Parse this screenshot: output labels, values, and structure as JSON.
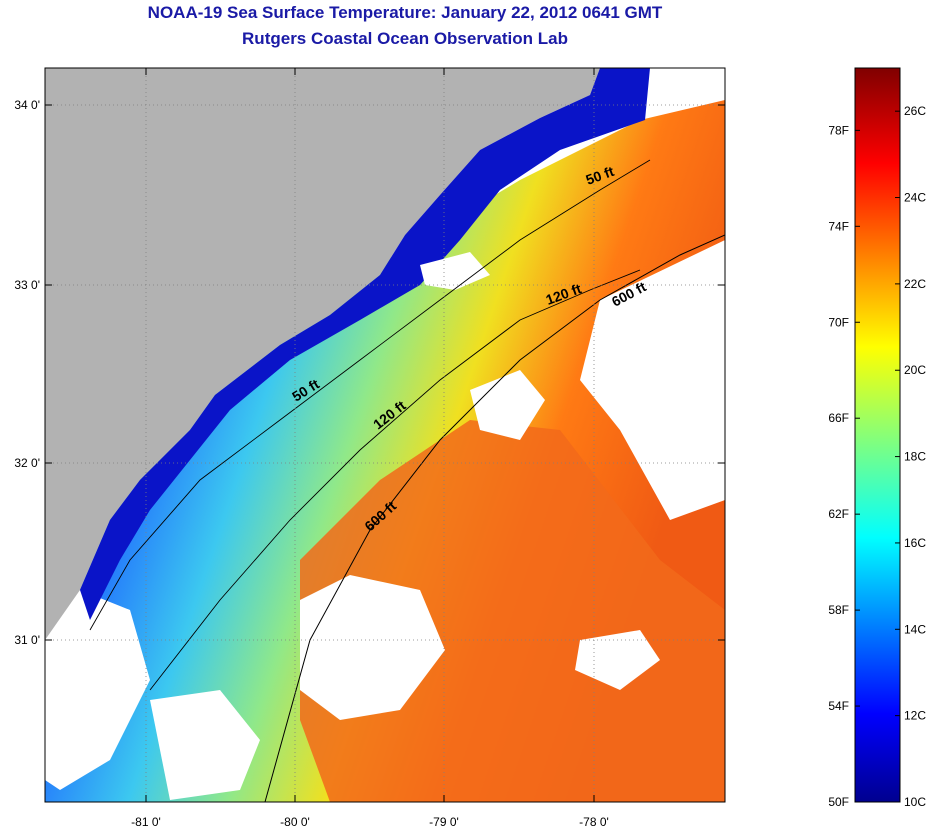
{
  "header": {
    "title_line1": "NOAA-19 Sea Surface Temperature:  January 22, 2012 0641 GMT",
    "title_line2": "Rutgers Coastal Ocean Observation Lab"
  },
  "map": {
    "lat_labels": [
      "34 0'",
      "33 0'",
      "32 0'",
      "31 0'"
    ],
    "lon_labels": [
      "-81 0'",
      "-80 0'",
      "-79 0'",
      "-78 0'"
    ],
    "contours": [
      {
        "label": "50 ft"
      },
      {
        "label": "50 ft"
      },
      {
        "label": "120 ft"
      },
      {
        "label": "120 ft"
      },
      {
        "label": "600 ft"
      },
      {
        "label": "600 ft"
      }
    ],
    "colors": {
      "land": "#b2b2b2",
      "cloud_nodata": "#ffffff"
    }
  },
  "colorbar": {
    "fahrenheit_labels": [
      "78F",
      "74F",
      "70F",
      "66F",
      "62F",
      "58F",
      "54F",
      "50F"
    ],
    "celsius_labels": [
      "26C",
      "24C",
      "22C",
      "20C",
      "18C",
      "16C",
      "14C",
      "12C",
      "10C"
    ],
    "range_celsius": [
      10,
      27
    ],
    "colormap": "jet"
  }
}
